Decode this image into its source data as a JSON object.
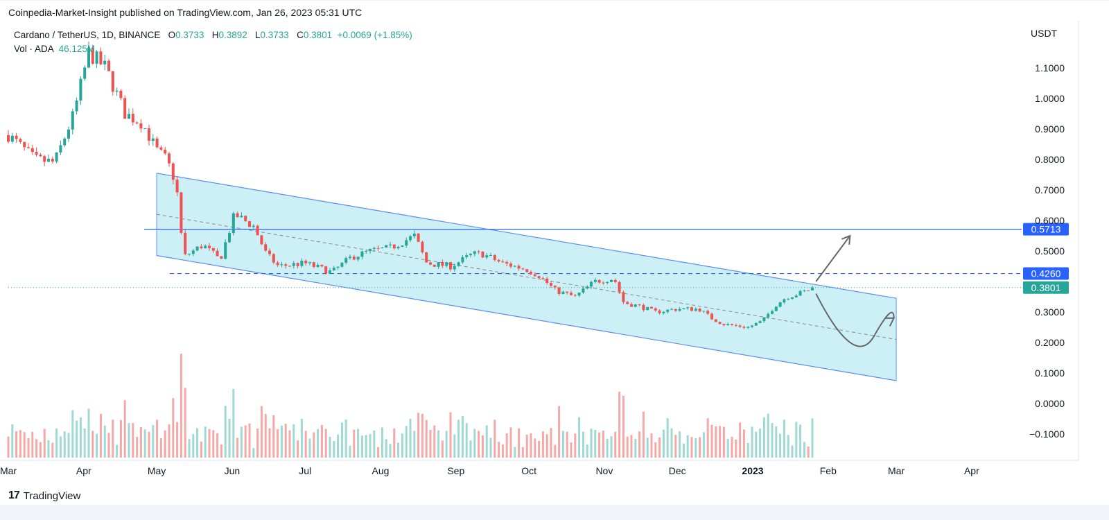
{
  "header": {
    "published_by": "Coinpedia-Market-Insight published on TradingView.com, Jan 26, 2023 05:31 UTC"
  },
  "legend": {
    "symbol": "Cardano / TetherUS, 1D, BINANCE",
    "o_label": "O",
    "o_value": "0.3733",
    "h_label": "H",
    "h_value": "0.3892",
    "l_label": "L",
    "l_value": "0.3733",
    "c_label": "C",
    "c_value": "0.3801",
    "change": "+0.0069 (+1.85%)",
    "vol_label": "Vol · ADA",
    "vol_value": "46.125M"
  },
  "footer": {
    "brand": "TradingView",
    "logo_text": "17"
  },
  "colors": {
    "up": "#26a69a",
    "down": "#ef5350",
    "channel_fill": "#cdeff6",
    "channel_line": "#5b8def",
    "level_line": "#2962ff",
    "price_label": "#26a69a"
  },
  "chart_data": {
    "type": "candlestick",
    "currency": "USDT",
    "y_ticks": [
      "1.1000",
      "1.0000",
      "0.9000",
      "0.8000",
      "0.7000",
      "0.6000",
      "0.5000",
      "0.3000",
      "0.2000",
      "0.1000",
      "0.0000",
      "−0.1000"
    ],
    "x_labels": [
      "Mar",
      "Apr",
      "May",
      "Jun",
      "Jul",
      "Aug",
      "Sep",
      "Oct",
      "Nov",
      "Dec",
      "2023",
      "Feb",
      "Mar",
      "Apr"
    ],
    "levels": [
      {
        "value": 0.5713,
        "label": "0.5713",
        "style": "solid"
      },
      {
        "value": 0.426,
        "label": "0.4260",
        "style": "dashed"
      },
      {
        "value": 0.3801,
        "label": "0.3801",
        "style": "dotted",
        "current": true
      }
    ],
    "channel": {
      "upper": [
        [
          "2022-05-01",
          0.755
        ],
        [
          "2023-03-01",
          0.345
        ]
      ],
      "lower": [
        [
          "2022-05-01",
          0.485
        ],
        [
          "2023-03-01",
          0.075
        ]
      ],
      "mid": [
        [
          "2022-05-01",
          0.62
        ],
        [
          "2023-03-01",
          0.21
        ]
      ]
    },
    "price_path": [
      [
        "2022-03-01",
        0.88
      ],
      [
        "2022-03-12",
        0.8
      ],
      [
        "2022-03-20",
        0.79
      ],
      [
        "2022-03-28",
        0.95
      ],
      [
        "2022-04-03",
        1.15
      ],
      [
        "2022-04-10",
        1.1
      ],
      [
        "2022-04-18",
        0.95
      ],
      [
        "2022-04-25",
        0.92
      ],
      [
        "2022-05-01",
        0.83
      ],
      [
        "2022-05-05",
        0.8
      ],
      [
        "2022-05-09",
        0.72
      ],
      [
        "2022-05-12",
        0.48
      ],
      [
        "2022-05-20",
        0.52
      ],
      [
        "2022-05-27",
        0.47
      ],
      [
        "2022-06-02",
        0.62
      ],
      [
        "2022-06-10",
        0.58
      ],
      [
        "2022-06-15",
        0.49
      ],
      [
        "2022-06-20",
        0.45
      ],
      [
        "2022-07-01",
        0.46
      ],
      [
        "2022-07-12",
        0.43
      ],
      [
        "2022-07-20",
        0.48
      ],
      [
        "2022-07-28",
        0.5
      ],
      [
        "2022-08-05",
        0.51
      ],
      [
        "2022-08-15",
        0.55
      ],
      [
        "2022-08-20",
        0.46
      ],
      [
        "2022-08-30",
        0.45
      ],
      [
        "2022-09-08",
        0.49
      ],
      [
        "2022-09-12",
        0.49
      ],
      [
        "2022-09-20",
        0.46
      ],
      [
        "2022-09-30",
        0.44
      ],
      [
        "2022-10-05",
        0.42
      ],
      [
        "2022-10-12",
        0.37
      ],
      [
        "2022-10-20",
        0.35
      ],
      [
        "2022-10-28",
        0.4
      ],
      [
        "2022-11-05",
        0.41
      ],
      [
        "2022-11-09",
        0.33
      ],
      [
        "2022-11-15",
        0.32
      ],
      [
        "2022-11-22",
        0.3
      ],
      [
        "2022-12-01",
        0.31
      ],
      [
        "2022-12-10",
        0.31
      ],
      [
        "2022-12-15",
        0.28
      ],
      [
        "2022-12-20",
        0.26
      ],
      [
        "2022-12-30",
        0.25
      ],
      [
        "2023-01-05",
        0.27
      ],
      [
        "2023-01-10",
        0.32
      ],
      [
        "2023-01-15",
        0.35
      ],
      [
        "2023-01-20",
        0.36
      ],
      [
        "2023-01-26",
        0.3801
      ]
    ],
    "projections": [
      {
        "path": [
          [
            "2023-01-27",
            0.4
          ],
          [
            "2023-02-10",
            0.55
          ]
        ],
        "arrow": true
      },
      {
        "path": [
          [
            "2023-01-27",
            0.36
          ],
          [
            "2023-02-12",
            0.2
          ],
          [
            "2023-02-28",
            0.28
          ]
        ],
        "arrow": true
      }
    ]
  }
}
